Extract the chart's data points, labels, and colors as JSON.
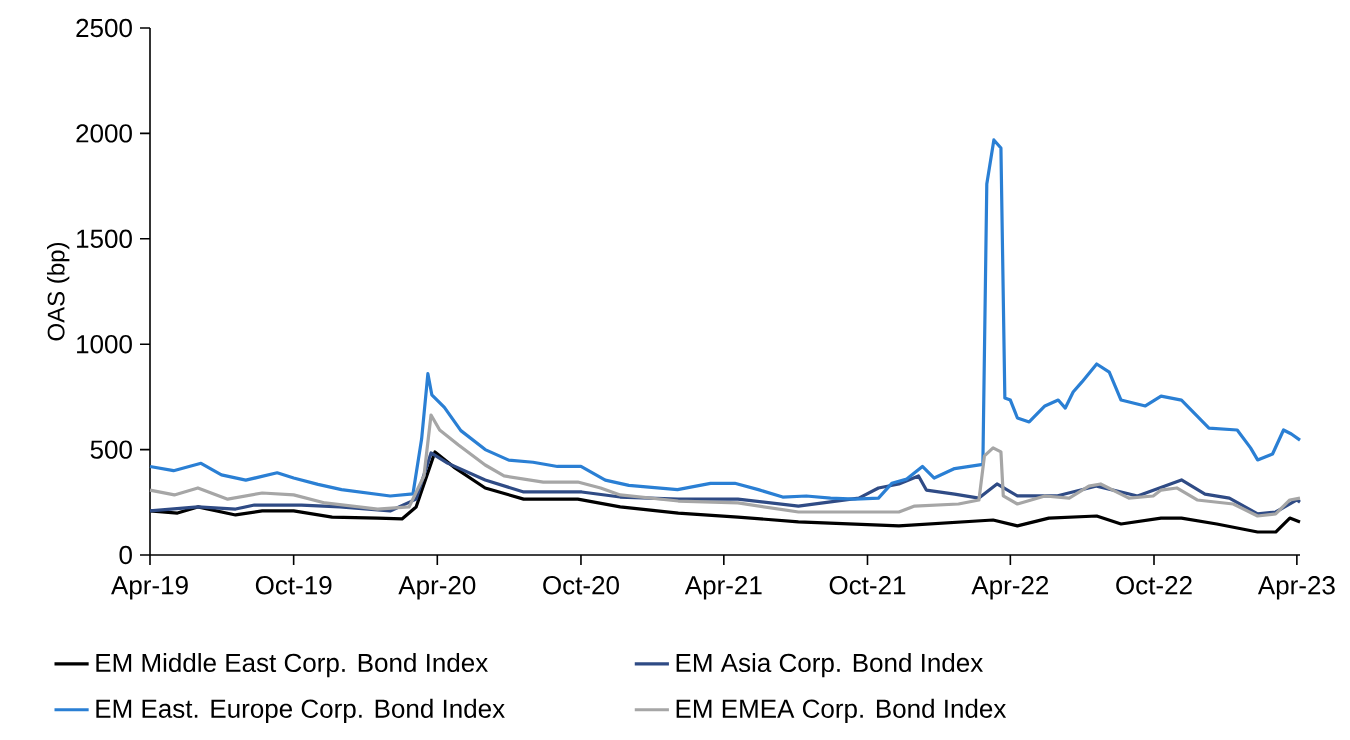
{
  "chart_data": {
    "type": "line",
    "ylabel": "OAS (bp)",
    "xlim": [
      "2019-04-01",
      "2023-04-05"
    ],
    "xticks": [
      {
        "value": "2019-04-01",
        "label": "Apr-19"
      },
      {
        "value": "2019-10-01",
        "label": "Oct-19"
      },
      {
        "value": "2020-04-01",
        "label": "Apr-20"
      },
      {
        "value": "2020-10-01",
        "label": "Oct-20"
      },
      {
        "value": "2021-04-01",
        "label": "Apr-21"
      },
      {
        "value": "2021-10-01",
        "label": "Oct-21"
      },
      {
        "value": "2022-04-01",
        "label": "Apr-22"
      },
      {
        "value": "2022-10-01",
        "label": "Oct-22"
      },
      {
        "value": "2023-04-01",
        "label": "Apr-23"
      }
    ],
    "ylim": [
      0,
      2500
    ],
    "yticks": [
      0,
      500,
      1000,
      1500,
      2000,
      2500
    ],
    "legend": "bottom",
    "series": [
      {
        "name": "EM Middle East Corp. Bond Index",
        "color": "#000000",
        "x": [
          "2019-04-01",
          "2019-05-06",
          "2019-06-01",
          "2019-07-19",
          "2019-08-22",
          "2019-10-01",
          "2019-11-19",
          "2020-01-16",
          "2020-02-16",
          "2020-03-05",
          "2020-03-29",
          "2020-04-22",
          "2020-06-01",
          "2020-07-20",
          "2020-09-27",
          "2020-11-20",
          "2021-02-02",
          "2021-04-19",
          "2021-07-05",
          "2021-11-10",
          "2022-03-10",
          "2022-04-10",
          "2022-05-20",
          "2022-07-20",
          "2022-08-20",
          "2022-10-10",
          "2022-11-05",
          "2022-12-20",
          "2023-02-10",
          "2023-03-05",
          "2023-03-23",
          "2023-04-05"
        ],
        "values": [
          209,
          199,
          228,
          190,
          209,
          209,
          180,
          175,
          171,
          228,
          489,
          417,
          318,
          265,
          265,
          228,
          199,
          180,
          157,
          138,
          166,
          138,
          175,
          185,
          147,
          175,
          175,
          147,
          109,
          109,
          175,
          157
        ]
      },
      {
        "name": "EM Asia Corp. Bond Index",
        "color": "#2f4b85",
        "x": [
          "2019-04-01",
          "2019-06-01",
          "2019-07-19",
          "2019-08-12",
          "2019-10-11",
          "2019-11-29",
          "2020-02-01",
          "2020-03-05",
          "2020-03-24",
          "2020-04-14",
          "2020-06-01",
          "2020-07-20",
          "2020-10-02",
          "2020-11-20",
          "2021-02-02",
          "2021-04-19",
          "2021-07-05",
          "2021-09-20",
          "2021-10-15",
          "2021-11-10",
          "2021-12-05",
          "2021-12-15",
          "2022-01-20",
          "2022-02-20",
          "2022-03-15",
          "2022-04-10",
          "2022-05-30",
          "2022-07-20",
          "2022-09-10",
          "2022-11-05",
          "2022-12-05",
          "2023-01-05",
          "2023-02-10",
          "2023-03-05",
          "2023-04-01",
          "2023-04-05"
        ],
        "values": [
          209,
          228,
          218,
          237,
          237,
          228,
          209,
          265,
          484,
          436,
          356,
          299,
          299,
          275,
          265,
          265,
          232,
          270,
          318,
          337,
          375,
          308,
          289,
          270,
          337,
          280,
          280,
          327,
          280,
          356,
          289,
          270,
          195,
          204,
          261,
          251
        ]
      },
      {
        "name": "EM East. Europe Corp. Bond Index",
        "color": "#2a7fd4",
        "x": [
          "2019-04-01",
          "2019-05-01",
          "2019-06-05",
          "2019-07-01",
          "2019-08-01",
          "2019-09-10",
          "2019-10-01",
          "2019-11-01",
          "2019-12-01",
          "2020-01-01",
          "2020-02-01",
          "2020-03-01",
          "2020-03-12",
          "2020-03-20",
          "2020-03-25",
          "2020-04-10",
          "2020-05-01",
          "2020-06-01",
          "2020-07-01",
          "2020-08-01",
          "2020-09-01",
          "2020-10-01",
          "2020-11-01",
          "2020-12-01",
          "2021-01-01",
          "2021-02-01",
          "2021-03-15",
          "2021-04-15",
          "2021-05-15",
          "2021-06-15",
          "2021-07-15",
          "2021-08-15",
          "2021-09-15",
          "2021-10-15",
          "2021-11-01",
          "2021-11-20",
          "2021-12-10",
          "2021-12-25",
          "2022-01-20",
          "2022-02-25",
          "2022-03-02",
          "2022-03-11",
          "2022-03-20",
          "2022-03-25",
          "2022-04-01",
          "2022-04-10",
          "2022-04-25",
          "2022-05-15",
          "2022-06-01",
          "2022-06-10",
          "2022-06-20",
          "2022-07-01",
          "2022-07-20",
          "2022-08-05",
          "2022-08-20",
          "2022-09-20",
          "2022-10-10",
          "2022-11-05",
          "2022-11-25",
          "2022-12-10",
          "2023-01-15",
          "2023-02-01",
          "2023-02-10",
          "2023-03-01",
          "2023-03-15",
          "2023-03-25",
          "2023-04-05"
        ],
        "values": [
          420,
          400,
          435,
          380,
          355,
          390,
          365,
          335,
          310,
          295,
          280,
          290,
          550,
          860,
          760,
          700,
          590,
          500,
          450,
          440,
          420,
          420,
          355,
          330,
          320,
          310,
          340,
          340,
          310,
          275,
          280,
          270,
          265,
          270,
          340,
          360,
          420,
          365,
          410,
          430,
          1760,
          1969,
          1931,
          745,
          735,
          650,
          631,
          707,
          735,
          697,
          773,
          820,
          906,
          868,
          735,
          707,
          754,
          735,
          659,
          602,
          593,
          508,
          451,
          479,
          593,
          574,
          545
        ]
      },
      {
        "name": "EM EMEA Corp. Bond Index",
        "color": "#a6a6a6",
        "x": [
          "2019-04-01",
          "2019-05-02",
          "2019-06-01",
          "2019-07-09",
          "2019-08-22",
          "2019-10-01",
          "2019-11-10",
          "2020-01-16",
          "2020-02-25",
          "2020-03-15",
          "2020-03-24",
          "2020-04-04",
          "2020-04-28",
          "2020-06-01",
          "2020-06-25",
          "2020-08-14",
          "2020-09-27",
          "2020-10-26",
          "2020-11-20",
          "2021-02-02",
          "2021-04-19",
          "2021-07-05",
          "2021-11-10",
          "2021-11-30",
          "2022-01-25",
          "2022-02-20",
          "2022-02-27",
          "2022-03-10",
          "2022-03-20",
          "2022-03-23",
          "2022-04-10",
          "2022-05-15",
          "2022-06-15",
          "2022-07-10",
          "2022-07-25",
          "2022-08-30",
          "2022-09-30",
          "2022-10-10",
          "2022-10-30",
          "2022-11-25",
          "2023-01-10",
          "2023-02-10",
          "2023-03-05",
          "2023-03-23",
          "2023-04-05"
        ],
        "values": [
          308,
          285,
          318,
          265,
          294,
          285,
          247,
          218,
          228,
          375,
          664,
          593,
          522,
          427,
          375,
          346,
          346,
          318,
          285,
          256,
          247,
          204,
          204,
          232,
          242,
          261,
          470,
          508,
          489,
          280,
          242,
          280,
          270,
          327,
          337,
          270,
          280,
          308,
          318,
          261,
          242,
          185,
          195,
          261,
          270
        ]
      }
    ]
  }
}
